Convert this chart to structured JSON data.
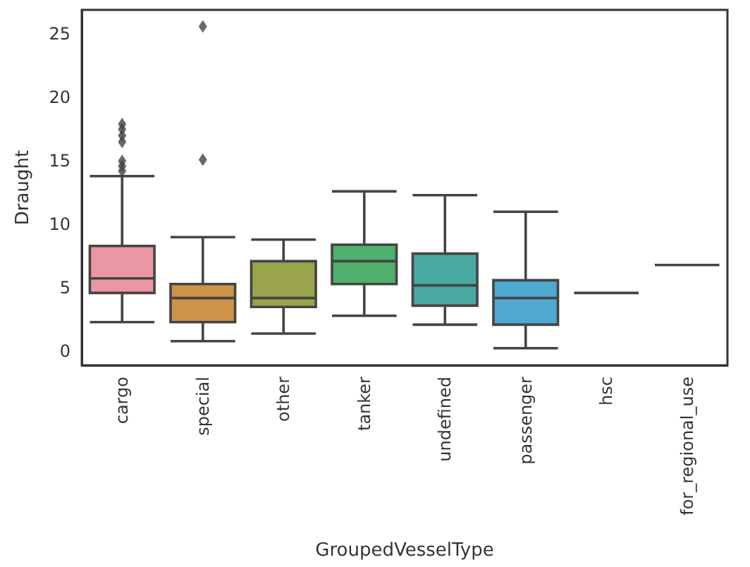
{
  "chart_data": {
    "type": "box",
    "xlabel": "GroupedVesselType",
    "ylabel": "Draught",
    "categories": [
      "cargo",
      "special",
      "other",
      "tanker",
      "undefined",
      "passenger",
      "hsc",
      "for_regional_use"
    ],
    "boxes": [
      {
        "low": 2.3,
        "q1": 4.6,
        "median": 5.75,
        "q3": 8.3,
        "high": 13.8,
        "outliers": [
          14.2,
          14.6,
          15.0,
          16.5,
          17.0,
          17.5,
          17.9
        ]
      },
      {
        "low": 0.8,
        "q1": 2.3,
        "median": 4.2,
        "q3": 5.3,
        "high": 9.0,
        "outliers": [
          15.1,
          25.6
        ]
      },
      {
        "low": 1.4,
        "q1": 3.5,
        "median": 4.2,
        "q3": 7.1,
        "high": 8.8
      },
      {
        "low": 2.8,
        "q1": 5.3,
        "median": 7.1,
        "q3": 8.4,
        "high": 12.6
      },
      {
        "low": 2.1,
        "q1": 3.6,
        "median": 5.2,
        "q3": 7.7,
        "high": 12.3
      },
      {
        "low": 0.25,
        "q1": 2.1,
        "median": 4.2,
        "q3": 5.6,
        "high": 11.0
      },
      {
        "low": 4.6,
        "q1": 4.6,
        "median": 4.6,
        "q3": 4.6,
        "high": 4.6
      },
      {
        "low": 6.8,
        "q1": 6.8,
        "median": 6.8,
        "q3": 6.8,
        "high": 6.8
      }
    ],
    "colors": [
      "#ea96a3",
      "#cd9346",
      "#9aa44a",
      "#4fb06d",
      "#48a9a1",
      "#4ea8cf",
      "#444444",
      "#444444"
    ],
    "ylim": [
      -1.1,
      26.9
    ],
    "yticks": [
      0,
      5,
      10,
      15,
      20,
      25
    ],
    "grid": false,
    "marker": "diamond"
  }
}
